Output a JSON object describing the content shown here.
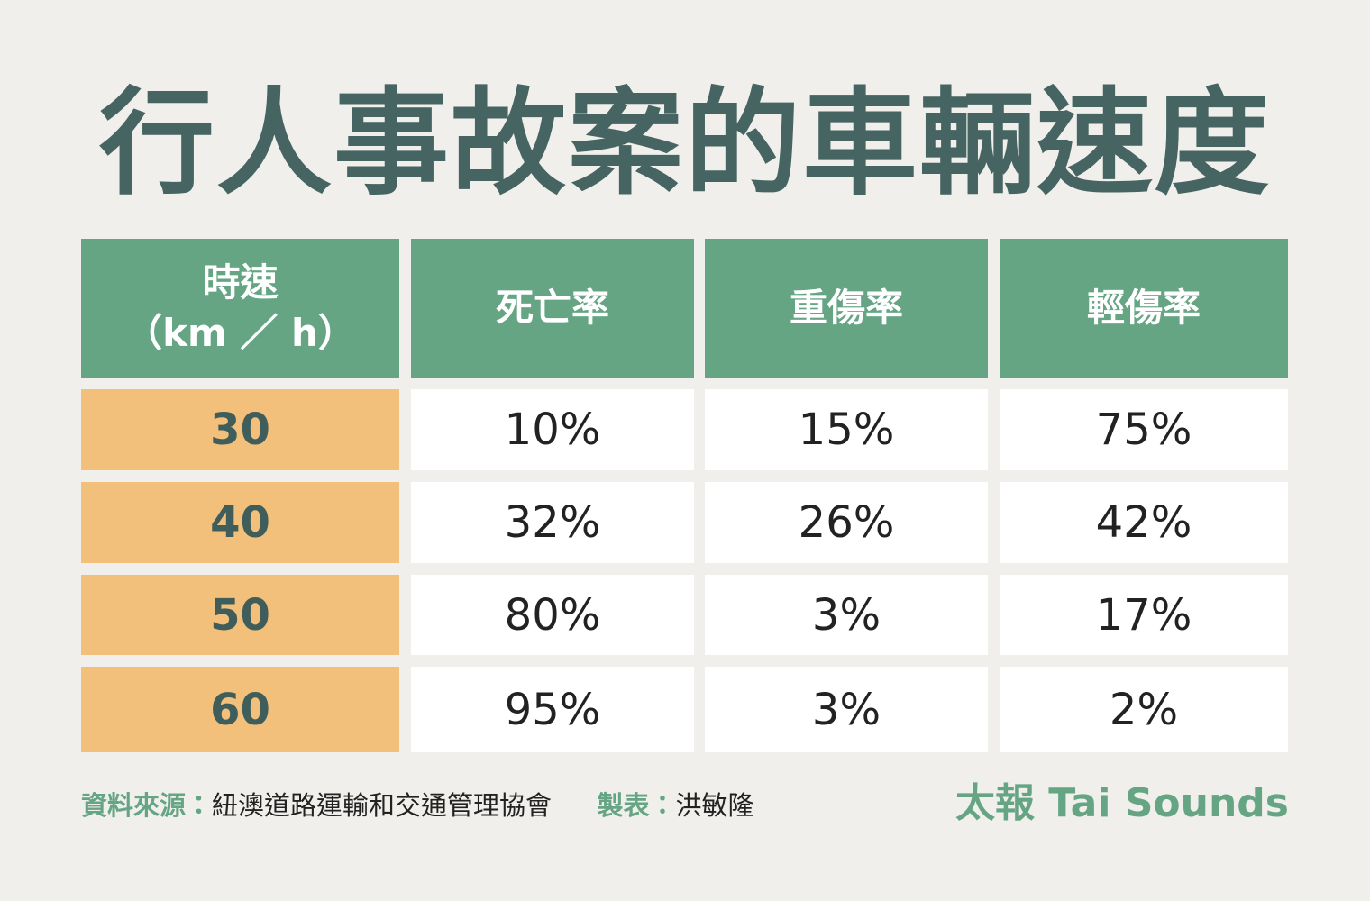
{
  "header": {
    "title": "行人事故案的車輛速度"
  },
  "table": {
    "header": [
      [
        "時速",
        "（km ／ h）"
      ],
      [
        "死亡率"
      ],
      [
        "重傷率"
      ],
      [
        "輕傷率"
      ]
    ],
    "rows": [
      [
        "30",
        "10%",
        "15%",
        "75%"
      ],
      [
        "40",
        "32%",
        "26%",
        "42%"
      ],
      [
        "50",
        "80%",
        "3%",
        "17%"
      ],
      [
        "60",
        "95%",
        "3%",
        "2%"
      ]
    ]
  },
  "footer": {
    "source_label": "資料來源：",
    "source": "紐澳道路運輸和交通管理協會",
    "maker_label": "製表：",
    "maker": "洪敏隆",
    "brand": "太報 Tai Sounds"
  }
}
